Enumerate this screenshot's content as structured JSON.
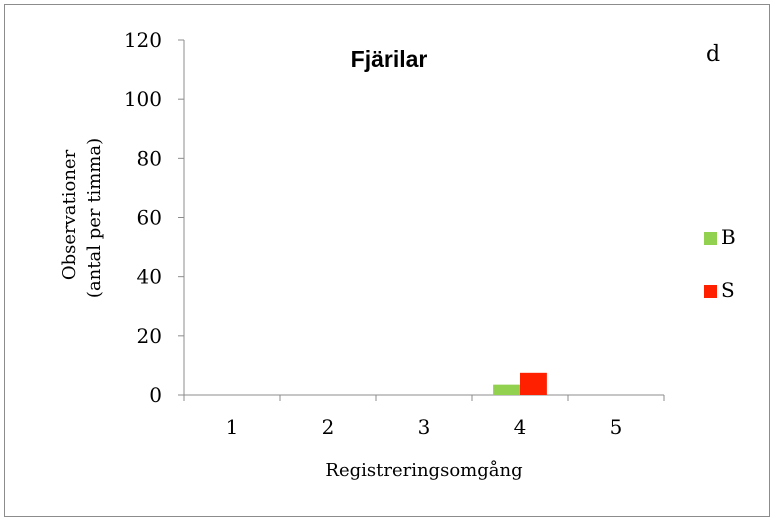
{
  "chart_data": {
    "type": "bar",
    "title": "Fjärilar",
    "panel_label": "d",
    "xlabel": "Registreringsomgång",
    "ylabel_line1": "Observationer",
    "ylabel_line2": "(antal per  timma)",
    "categories": [
      "1",
      "2",
      "3",
      "4",
      "5"
    ],
    "ylim": [
      0,
      120
    ],
    "yticks": [
      "0",
      "20",
      "40",
      "60",
      "80",
      "100",
      "120"
    ],
    "series": [
      {
        "name": "B",
        "color": "#92d050",
        "values": [
          0,
          0,
          0,
          3.5,
          0
        ]
      },
      {
        "name": "S",
        "color": "#ff2000",
        "values": [
          0,
          0,
          0,
          7.5,
          0
        ]
      }
    ],
    "legend_position": "right",
    "grid": false
  }
}
